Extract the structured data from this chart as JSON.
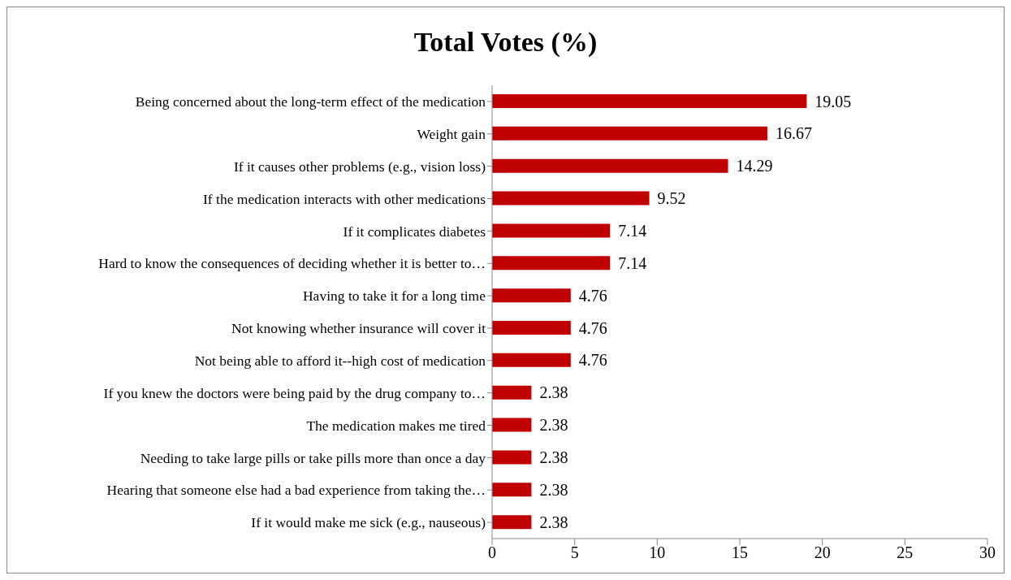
{
  "chart_data": {
    "type": "bar",
    "orientation": "horizontal",
    "title": "Total Votes (%)",
    "categories": [
      "Being concerned about the long-term effect of the medication",
      "Weight gain",
      "If it causes other problems (e.g., vision loss)",
      "If the medication interacts with other medications",
      "If it complicates diabetes",
      "Hard to know the consequences of deciding whether it is better to…",
      "Having to take it for a long time",
      "Not knowing whether insurance will cover it",
      "Not being able to afford it--high cost of medication",
      "If you knew the doctors were being paid by the drug company to…",
      "The medication makes me tired",
      "Needing to take large pills or take pills more than once a day",
      "Hearing that someone else had a bad experience from taking the…",
      "If it would make me sick (e.g., nauseous)"
    ],
    "values": [
      19.05,
      16.67,
      14.29,
      9.52,
      7.14,
      7.14,
      4.76,
      4.76,
      4.76,
      2.38,
      2.38,
      2.38,
      2.38,
      2.38
    ],
    "color": "#c00000",
    "xlim": [
      0,
      30
    ],
    "xticks": [
      0,
      5,
      10,
      15,
      20,
      25,
      30
    ],
    "data_labels": true
  }
}
